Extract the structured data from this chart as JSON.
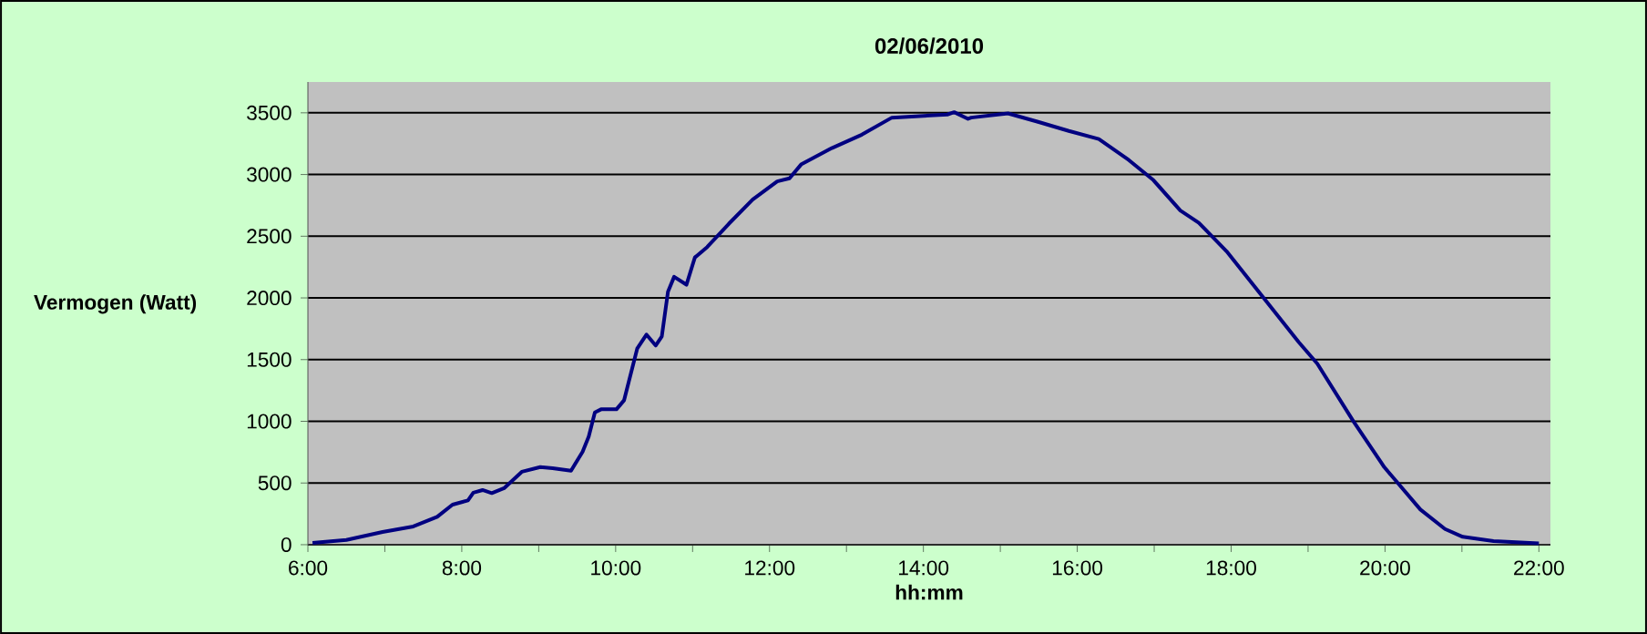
{
  "chart_data": {
    "type": "line",
    "title": "02/06/2010",
    "xlabel": "hh:mm",
    "ylabel": "Vermogen (Watt)",
    "x": [
      6.06,
      6.5,
      6.97,
      7.37,
      7.68,
      7.88,
      8.08,
      8.15,
      8.27,
      8.39,
      8.55,
      8.78,
      9.02,
      9.18,
      9.42,
      9.57,
      9.65,
      9.73,
      9.81,
      10.01,
      10.11,
      10.17,
      10.28,
      10.4,
      10.52,
      10.6,
      10.68,
      10.76,
      10.92,
      11.03,
      11.19,
      11.47,
      11.78,
      12.1,
      12.26,
      12.41,
      12.81,
      13.2,
      13.59,
      14.31,
      14.4,
      14.58,
      14.62,
      15.02,
      15.1,
      15.49,
      15.89,
      16.28,
      16.67,
      16.99,
      17.34,
      17.58,
      17.94,
      18.41,
      18.88,
      19.12,
      19.59,
      19.99,
      20.46,
      20.78,
      21.01,
      21.41,
      22.0
    ],
    "series": [
      {
        "color": "#000080",
        "values": [
          15,
          38,
          103,
          148,
          226,
          325,
          359,
          422,
          443,
          418,
          458,
          591,
          629,
          620,
          600,
          753,
          876,
          1072,
          1097,
          1097,
          1171,
          1319,
          1589,
          1703,
          1614,
          1688,
          2050,
          2171,
          2107,
          2328,
          2412,
          2600,
          2796,
          2944,
          2969,
          3081,
          3214,
          3323,
          3461,
          3486,
          3505,
          3451,
          3461,
          3490,
          3495,
          3427,
          3353,
          3288,
          3117,
          2954,
          2708,
          2609,
          2378,
          2009,
          1640,
          1467,
          999,
          629,
          285,
          127,
          64,
          30,
          10
        ]
      }
    ],
    "xlim": [
      6,
      22.15
    ],
    "ylim": [
      0,
      3750
    ],
    "xticks": [
      {
        "value": 6,
        "label": "6:00"
      },
      {
        "value": 7,
        "label": null
      },
      {
        "value": 8,
        "label": "8:00"
      },
      {
        "value": 9,
        "label": null
      },
      {
        "value": 10,
        "label": "10:00"
      },
      {
        "value": 11,
        "label": null
      },
      {
        "value": 12,
        "label": "12:00"
      },
      {
        "value": 13,
        "label": null
      },
      {
        "value": 14,
        "label": "14:00"
      },
      {
        "value": 15,
        "label": null
      },
      {
        "value": 16,
        "label": "16:00"
      },
      {
        "value": 17,
        "label": null
      },
      {
        "value": 18,
        "label": "18:00"
      },
      {
        "value": 19,
        "label": null
      },
      {
        "value": 20,
        "label": "20:00"
      },
      {
        "value": 21,
        "label": null
      },
      {
        "value": 22,
        "label": "22:00"
      }
    ],
    "yticks": [
      0,
      500,
      1000,
      1500,
      2000,
      2500,
      3000,
      3500
    ],
    "grid": "y",
    "marker": "none",
    "line_style": "solid"
  }
}
